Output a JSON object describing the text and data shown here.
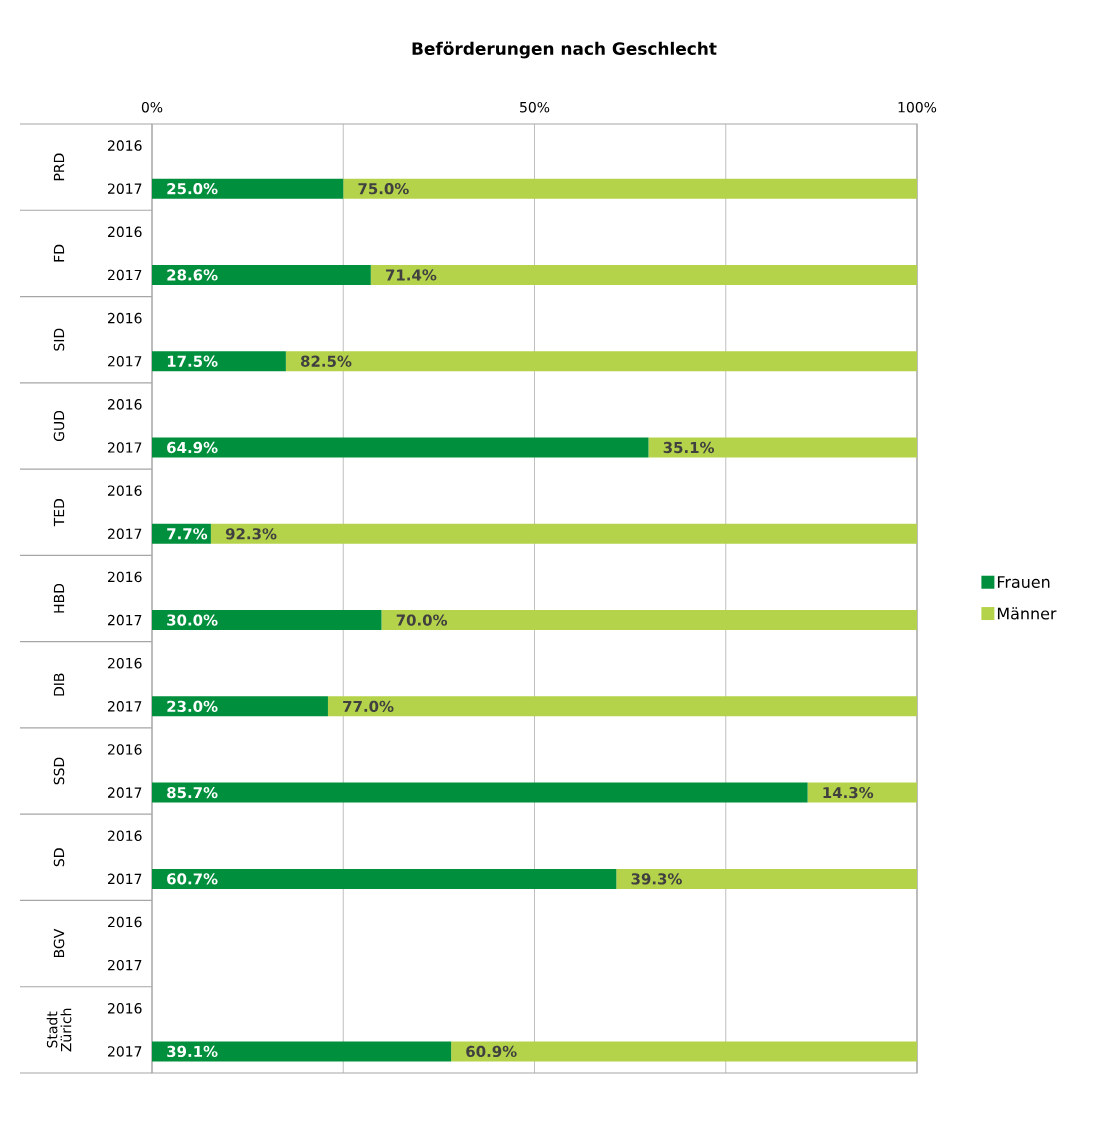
{
  "chart_data": {
    "type": "bar",
    "orientation": "horizontal",
    "stacked": true,
    "title": "Beförderungen nach Geschlecht",
    "categories": [
      "2016",
      "2017",
      "2016",
      "2017",
      "2016",
      "2017",
      "2016",
      "2017",
      "2016",
      "2017",
      "2016",
      "2017",
      "2016",
      "2017",
      "2016",
      "2017",
      "2016",
      "2017",
      "2016",
      "2017",
      "2016",
      "2017"
    ],
    "series": [
      {
        "name": "Frauen",
        "color": "#008f3c",
        "values": [
          null,
          25.0,
          null,
          28.6,
          null,
          17.5,
          null,
          64.9,
          null,
          7.7,
          null,
          30.0,
          null,
          23.0,
          null,
          85.7,
          null,
          60.7,
          null,
          null,
          null,
          39.1
        ],
        "value_labels": [
          null,
          "25.0%",
          null,
          "28.6%",
          null,
          "17.5%",
          null,
          "64.9%",
          null,
          "7.7%",
          null,
          "30.0%",
          null,
          "23.0%",
          null,
          "85.7%",
          null,
          "60.7%",
          null,
          null,
          null,
          "39.1%"
        ]
      },
      {
        "name": "Männer",
        "color": "#b5d34a",
        "values": [
          null,
          75.0,
          null,
          71.4,
          null,
          82.5,
          null,
          35.1,
          null,
          92.3,
          null,
          70.0,
          null,
          77.0,
          null,
          14.3,
          null,
          39.3,
          null,
          null,
          null,
          60.9
        ],
        "value_labels": [
          null,
          "75.0%",
          null,
          "71.4%",
          null,
          "82.5%",
          null,
          "35.1%",
          null,
          "92.3%",
          null,
          "70.0%",
          null,
          "77.0%",
          null,
          "14.3%",
          null,
          "39.3%",
          null,
          null,
          null,
          "60.9%"
        ]
      }
    ],
    "annotations": [
      "PRD",
      "FD",
      "SID",
      "GUD",
      "TED",
      "HBD",
      "DIB",
      "SSD",
      "SD",
      "BGV",
      "Stadt Zürich"
    ],
    "xlim": [
      0,
      100
    ],
    "xticks": [
      {
        "value": 0,
        "label": "0%"
      },
      {
        "value": 25,
        "label": null
      },
      {
        "value": 50,
        "label": "50%"
      },
      {
        "value": 75,
        "label": null
      },
      {
        "value": 100,
        "label": "100%"
      }
    ],
    "grid": "x",
    "legend": "right"
  }
}
